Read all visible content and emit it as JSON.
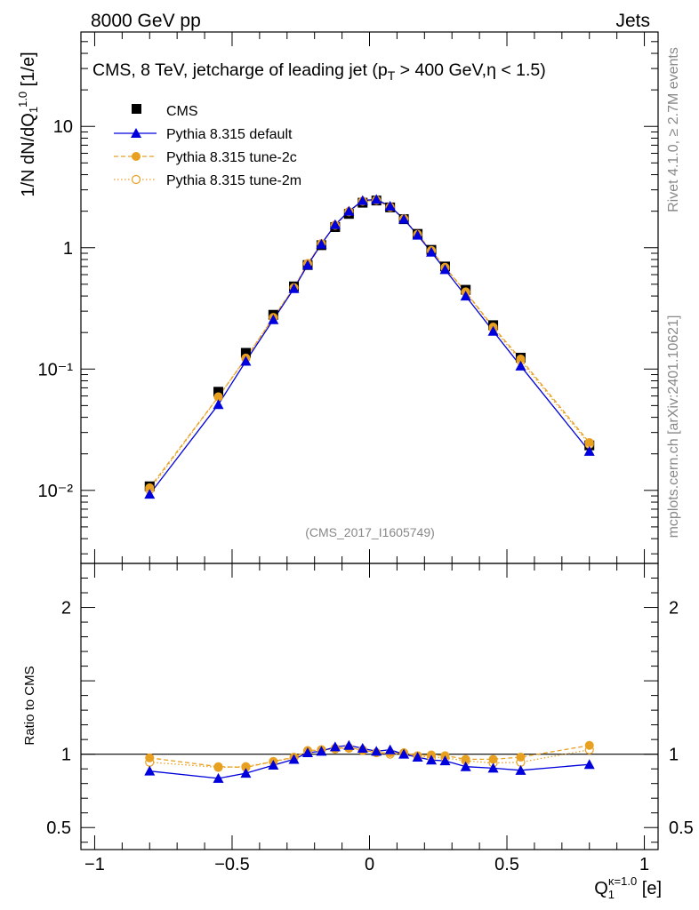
{
  "header": {
    "left": "8000 GeV pp",
    "right": "Jets"
  },
  "side": {
    "rivet": "Rivet 4.1.0, ≥ 2.7M events",
    "mcplots": "mcplots.cern.ch [arXiv:2401.10621]"
  },
  "colors": {
    "default": "#0000dd",
    "tune2c": "#e8a020",
    "tune2m": "#e8a020",
    "cms": "#000000"
  },
  "chart_data": {
    "type": "scatter",
    "title": "CMS, 8 TeV, jetcharge of leading jet (p_T > 400 GeV, η < 1.5)",
    "analysis": "(CMS_2017_I1605749)",
    "ylabel_main": "1/N dN/dQ₁¹·⁰ [1/e]",
    "ylabel_ratio": "Ratio to CMS",
    "xlabel": "Q₁^(κ=1.0) [e]",
    "xlim": [
      -1.05,
      1.05
    ],
    "ylim_main": [
      0.0025,
      60
    ],
    "ylim_ratio": [
      0.35,
      2.3
    ],
    "xticks": [
      {
        "v": -1,
        "label": "−1"
      },
      {
        "v": -0.5,
        "label": "−0.5"
      },
      {
        "v": 0,
        "label": "0"
      },
      {
        "v": 0.5,
        "label": "0.5"
      },
      {
        "v": 1,
        "label": "1"
      }
    ],
    "yticks_main": [
      {
        "v": 10,
        "label": "10"
      },
      {
        "v": 1,
        "label": "1"
      },
      {
        "v": 0.1,
        "label": "10⁻¹"
      },
      {
        "v": 0.01,
        "label": "10⁻²"
      }
    ],
    "yticks_ratio": [
      {
        "v": 2,
        "label": "2"
      },
      {
        "v": 1,
        "label": "1"
      },
      {
        "v": 0.5,
        "label": "0.5"
      }
    ],
    "x": [
      -0.8,
      -0.55,
      -0.45,
      -0.35,
      -0.275,
      -0.225,
      -0.175,
      -0.125,
      -0.075,
      -0.025,
      0.025,
      0.075,
      0.125,
      0.175,
      0.225,
      0.275,
      0.35,
      0.45,
      0.55,
      0.8
    ],
    "series": [
      {
        "name": "CMS",
        "key": "cms",
        "marker": "square",
        "values": [
          0.0108,
          0.065,
          0.136,
          0.28,
          0.48,
          0.72,
          1.05,
          1.48,
          1.9,
          2.35,
          2.45,
          2.15,
          1.72,
          1.3,
          0.96,
          0.7,
          0.45,
          0.23,
          0.124,
          0.0235
        ]
      },
      {
        "name": "Pythia 8.315 default",
        "key": "default",
        "marker": "triangle",
        "line": "solid",
        "values": [
          0.0093,
          0.051,
          0.116,
          0.255,
          0.46,
          0.72,
          1.07,
          1.55,
          2.0,
          2.45,
          2.5,
          2.2,
          1.72,
          1.27,
          0.92,
          0.66,
          0.4,
          0.205,
          0.106,
          0.021
        ]
      },
      {
        "name": "Pythia 8.315 tune-2c",
        "key": "tune2c",
        "marker": "circle-filled",
        "line": "dashed",
        "values": [
          0.0105,
          0.059,
          0.122,
          0.265,
          0.468,
          0.74,
          1.08,
          1.54,
          1.99,
          2.42,
          2.47,
          2.17,
          1.73,
          1.29,
          0.95,
          0.69,
          0.433,
          0.222,
          0.121,
          0.0248
        ]
      },
      {
        "name": "Pythia 8.315 tune-2m",
        "key": "tune2m",
        "marker": "circle-open",
        "line": "dotted",
        "values": [
          0.0101,
          0.059,
          0.123,
          0.266,
          0.468,
          0.74,
          1.08,
          1.53,
          1.98,
          2.42,
          2.46,
          2.16,
          1.73,
          1.28,
          0.94,
          0.68,
          0.43,
          0.216,
          0.117,
          0.024
        ]
      }
    ],
    "ratio": [
      {
        "key": "default",
        "values": [
          0.885,
          0.835,
          0.87,
          0.925,
          0.965,
          1.01,
          1.02,
          1.05,
          1.06,
          1.04,
          1.02,
          1.03,
          1.0,
          0.98,
          0.96,
          0.955,
          0.915,
          0.905,
          0.89,
          0.93
        ]
      },
      {
        "key": "tune2c",
        "values": [
          0.975,
          0.915,
          0.91,
          0.95,
          0.98,
          1.025,
          1.03,
          1.04,
          1.045,
          1.03,
          1.01,
          1.01,
          1.01,
          0.99,
          0.995,
          0.99,
          0.965,
          0.965,
          0.98,
          1.06
        ]
      },
      {
        "key": "tune2m",
        "values": [
          0.945,
          0.91,
          0.915,
          0.95,
          0.975,
          1.02,
          1.03,
          1.035,
          1.04,
          1.025,
          1.01,
          1.0,
          1.005,
          0.985,
          0.98,
          0.975,
          0.955,
          0.94,
          0.945,
          1.03
        ]
      }
    ]
  }
}
